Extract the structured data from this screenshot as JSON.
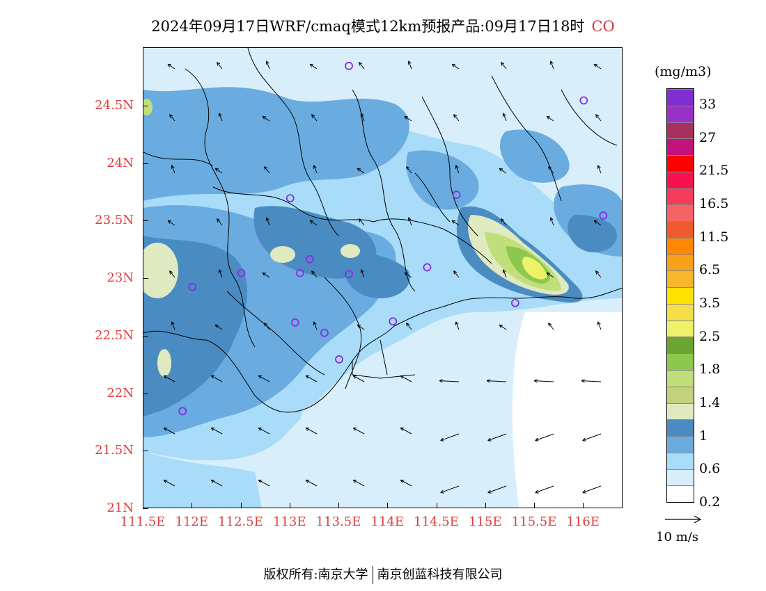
{
  "header": {
    "title": "2024年09月17日WRF/cmaq模式12km预报产品:09月17日18时",
    "species": "CO"
  },
  "map": {
    "lat_labels": [
      "24.5N",
      "24N",
      "23.5N",
      "23N",
      "22.5N",
      "22N",
      "21.5N",
      "21N"
    ],
    "lon_labels": [
      "111.5E",
      "112E",
      "112.5E",
      "113E",
      "113.5E",
      "114E",
      "114.5E",
      "115E",
      "115.5E",
      "116E"
    ],
    "lat_values": [
      24.5,
      24,
      23.5,
      23,
      22.5,
      22,
      21.5,
      21
    ],
    "lon_values": [
      111.5,
      112,
      112.5,
      113,
      113.5,
      114,
      114.5,
      115,
      115.5,
      116
    ],
    "lat_range": [
      21,
      25
    ],
    "lon_range": [
      111.5,
      116.5
    ],
    "station_marker": "purple-circle",
    "station_color": "#8a2be2",
    "stations": [
      [
        113.6,
        24.85
      ],
      [
        116.0,
        24.55
      ],
      [
        113.0,
        23.7
      ],
      [
        114.7,
        23.73
      ],
      [
        116.2,
        23.55
      ],
      [
        112.5,
        23.05
      ],
      [
        112.0,
        22.93
      ],
      [
        113.2,
        23.17
      ],
      [
        113.1,
        23.05
      ],
      [
        113.6,
        23.04
      ],
      [
        114.4,
        23.1
      ],
      [
        113.05,
        22.62
      ],
      [
        113.35,
        22.53
      ],
      [
        114.05,
        22.63
      ],
      [
        113.5,
        22.3
      ],
      [
        115.3,
        22.79
      ],
      [
        111.9,
        21.85
      ]
    ]
  },
  "legend": {
    "unit": "(mg/m3)",
    "labels": [
      "33",
      "27",
      "21.5",
      "16.5",
      "11.5",
      "6.5",
      "3.5",
      "2.5",
      "1.8",
      "1.4",
      "1",
      "0.6",
      "0.2"
    ],
    "colors": [
      "#7f2fd0",
      "#9b30c8",
      "#a8305e",
      "#c4127c",
      "#ff0000",
      "#f5124f",
      "#f43d5a",
      "#f46464",
      "#ef5a2f",
      "#ff8800",
      "#f7a21a",
      "#f6b62e",
      "#ffe200",
      "#f6de4a",
      "#eef26a",
      "#6aa532",
      "#8dc84c",
      "#c0df7a",
      "#c3d27c",
      "#dfeac0",
      "#4a8cc2",
      "#6aace0",
      "#a8dcf8",
      "#d8eefb",
      "#ffffff"
    ]
  },
  "wind_reference": {
    "label": "10 m/s"
  },
  "footer": {
    "left": "版权所有:南京大学",
    "right": "南京创蓝科技有限公司"
  }
}
